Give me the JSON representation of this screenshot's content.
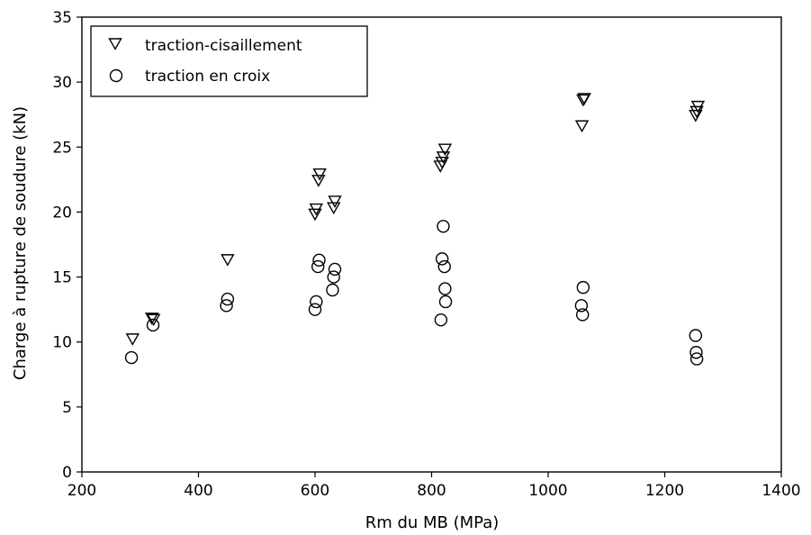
{
  "chart_data": {
    "type": "scatter",
    "title": "",
    "xlabel": "Rm du MB (MPa)",
    "ylabel": "Charge à rupture de soudure (kN)",
    "xlim": [
      200,
      1400
    ],
    "ylim": [
      0,
      35
    ],
    "xticks": [
      200,
      400,
      600,
      800,
      1000,
      1200,
      1400
    ],
    "yticks": [
      0,
      5,
      10,
      15,
      20,
      25,
      30,
      35
    ],
    "grid": false,
    "legend_position": "top-left",
    "series": [
      {
        "name": "traction-cisaillement",
        "marker": "triangle-down",
        "color": "#000000",
        "points": [
          [
            287,
            10.3
          ],
          [
            320,
            11.9
          ],
          [
            323,
            11.8
          ],
          [
            450,
            16.4
          ],
          [
            600,
            19.9
          ],
          [
            602,
            20.3
          ],
          [
            606,
            22.5
          ],
          [
            608,
            23.0
          ],
          [
            632,
            20.4
          ],
          [
            634,
            20.9
          ],
          [
            815,
            23.6
          ],
          [
            818,
            23.9
          ],
          [
            820,
            24.3
          ],
          [
            823,
            24.9
          ],
          [
            1058,
            26.7
          ],
          [
            1060,
            28.7
          ],
          [
            1062,
            28.8
          ],
          [
            1253,
            27.5
          ],
          [
            1255,
            27.8
          ],
          [
            1257,
            28.2
          ]
        ]
      },
      {
        "name": "traction en croix",
        "marker": "circle",
        "color": "#000000",
        "points": [
          [
            285,
            8.8
          ],
          [
            322,
            11.3
          ],
          [
            448,
            12.8
          ],
          [
            450,
            13.3
          ],
          [
            600,
            12.5
          ],
          [
            602,
            13.1
          ],
          [
            605,
            15.8
          ],
          [
            607,
            16.3
          ],
          [
            630,
            14.0
          ],
          [
            632,
            15.0
          ],
          [
            634,
            15.6
          ],
          [
            816,
            11.7
          ],
          [
            818,
            16.4
          ],
          [
            820,
            18.9
          ],
          [
            822,
            15.8
          ],
          [
            823,
            14.1
          ],
          [
            824,
            13.1
          ],
          [
            1057,
            12.8
          ],
          [
            1059,
            12.1
          ],
          [
            1060,
            14.2
          ],
          [
            1253,
            10.5
          ],
          [
            1254,
            9.2
          ],
          [
            1255,
            8.7
          ]
        ]
      }
    ]
  }
}
